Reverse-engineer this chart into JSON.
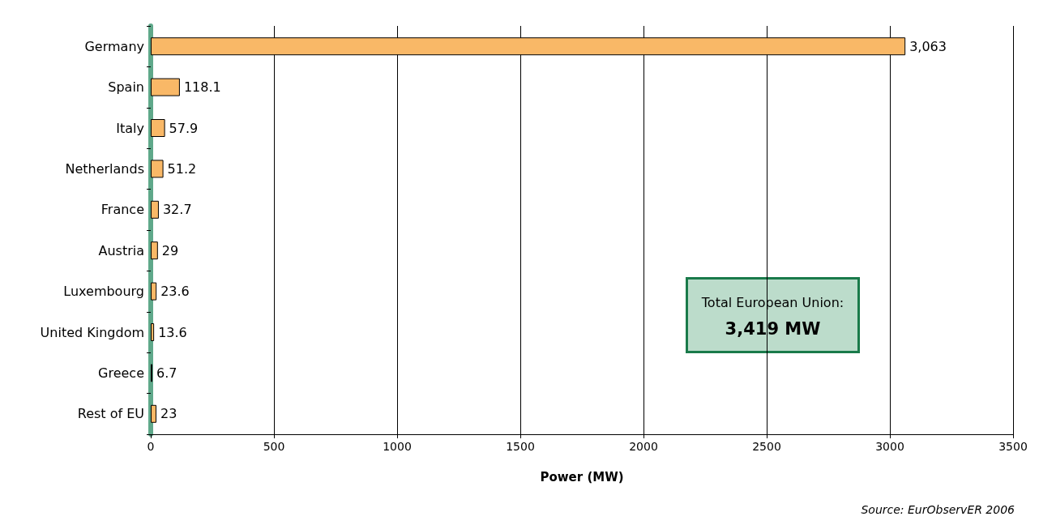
{
  "chart_data": {
    "type": "bar",
    "orientation": "horizontal",
    "xlabel": "Power (MW)",
    "categories": [
      "Germany",
      "Spain",
      "Italy",
      "Netherlands",
      "France",
      "Austria",
      "Luxembourg",
      "United Kingdom",
      "Greece",
      "Rest of EU"
    ],
    "values": [
      3063,
      118.1,
      57.9,
      51.2,
      32.7,
      29,
      23.6,
      13.6,
      6.7,
      23
    ],
    "value_labels": [
      "3,063",
      "118.1",
      "57.9",
      "51.2",
      "32.7",
      "29",
      "23.6",
      "13.6",
      "6.7",
      "23"
    ],
    "color": "#f9b867",
    "xlim": [
      0,
      3500
    ],
    "xticks": [
      0,
      500,
      1000,
      1500,
      2000,
      2500,
      3000,
      3500
    ],
    "grid": "x",
    "annotations": [
      "Total European Union:\n3,419 MW",
      "Source: EurObservER 2006"
    ]
  }
}
